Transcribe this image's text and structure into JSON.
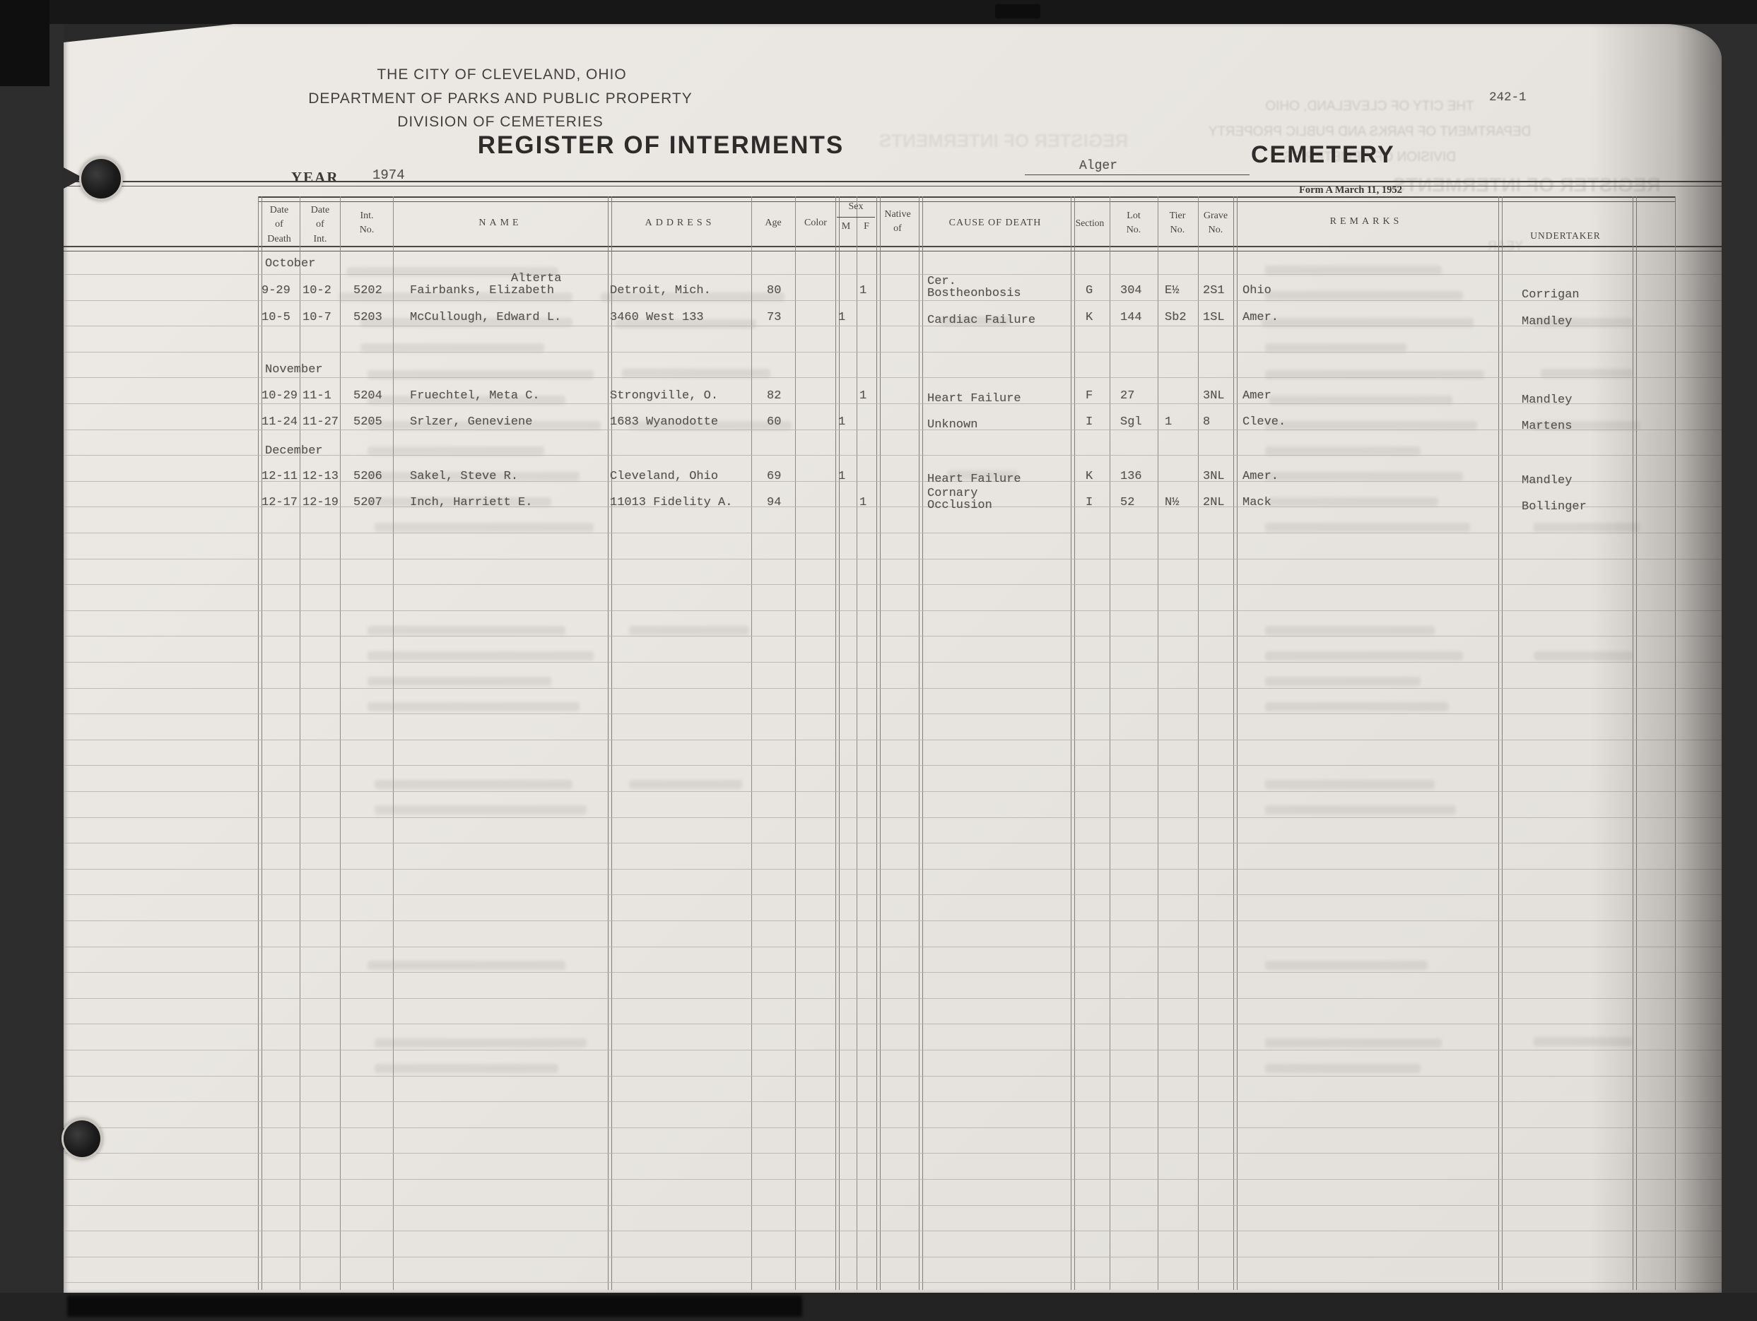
{
  "page_label": "242-1",
  "header": {
    "org_line1": "THE CITY OF CLEVELAND, OHIO",
    "org_line2": "DEPARTMENT OF PARKS AND PUBLIC PROPERTY",
    "org_line3": "DIVISION OF CEMETERIES",
    "title": "REGISTER OF INTERMENTS",
    "year_label": "YEAR",
    "year_value": "1974",
    "cemetery_value": "Alger",
    "cemetery_label": "CEMETERY",
    "form_note": "Form A March 11, 1952"
  },
  "table": {
    "columns": {
      "date_of_death": "Date\nof\nDeath",
      "date_of_int": "Date\nof\nInt.",
      "int_no": "Int.\nNo.",
      "name": "NAME",
      "address": "ADDRESS",
      "age": "Age",
      "color": "Color",
      "sex": "Sex",
      "sex_m": "M",
      "sex_f": "F",
      "native_of": "Native\nof",
      "cause_of_death": "CAUSE OF DEATH",
      "section": "Section",
      "lot_no": "Lot\nNo.",
      "tier_no": "Tier\nNo.",
      "grave_no": "Grave\nNo.",
      "remarks": "REMARKS",
      "undertaker": "UNDERTAKER"
    },
    "rows": [
      {
        "type": "month",
        "label": "October"
      },
      {
        "type": "entry",
        "date_of_death": "9-29",
        "date_of_int": "10-2",
        "int_no": "5202",
        "name": "Fairbanks, Elizabeth",
        "name_above": "Alterta",
        "address": "Detroit, Mich.",
        "age": "80",
        "color": "",
        "sex": "F",
        "native_of": "",
        "cause_lines": [
          "Cer.",
          "Bostheonbosis"
        ],
        "section": "G",
        "lot": "304",
        "tier": "E½",
        "grave": "2S1",
        "remarks": "Ohio",
        "undertaker": "Corrigan"
      },
      {
        "type": "entry",
        "date_of_death": "10-5",
        "date_of_int": "10-7",
        "int_no": "5203",
        "name": "McCullough, Edward L.",
        "name_above": "",
        "address": "3460 West 133",
        "age": "73",
        "color": "",
        "sex": "M",
        "native_of": "",
        "cause_lines": [
          "Cardiac Failure"
        ],
        "section": "K",
        "lot": "144",
        "tier": "Sb2",
        "grave": "1SL",
        "remarks": "Amer.",
        "undertaker": "Mandley"
      },
      {
        "type": "month",
        "label": "November"
      },
      {
        "type": "entry",
        "date_of_death": "10-29",
        "date_of_int": "11-1",
        "int_no": "5204",
        "name": "Fruechtel, Meta C.",
        "name_above": "",
        "address": "Strongville, O.",
        "age": "82",
        "color": "",
        "sex": "F",
        "native_of": "",
        "cause_lines": [
          "Heart Failure"
        ],
        "section": "F",
        "lot": "27",
        "tier": "",
        "grave": "3NL",
        "remarks": "Amer",
        "undertaker": "Mandley"
      },
      {
        "type": "entry",
        "date_of_death": "11-24",
        "date_of_int": "11-27",
        "int_no": "5205",
        "name": "Srlzer, Geneviene",
        "name_above": "",
        "address": "1683 Wyanodotte",
        "age": "60",
        "color": "",
        "sex": "M",
        "native_of": "",
        "cause_lines": [
          "Unknown"
        ],
        "section": "I",
        "lot": "Sgl",
        "tier": "1",
        "grave": "8",
        "remarks": "Cleve.",
        "undertaker": "Martens"
      },
      {
        "type": "month",
        "label": "December"
      },
      {
        "type": "entry",
        "date_of_death": "12-11",
        "date_of_int": "12-13",
        "int_no": "5206",
        "name": "Sakel, Steve R.",
        "name_above": "",
        "address": "Cleveland, Ohio",
        "age": "69",
        "color": "",
        "sex": "M",
        "native_of": "",
        "cause_lines": [
          "Heart Failure"
        ],
        "section": "K",
        "lot": "136",
        "tier": "",
        "grave": "3NL",
        "remarks": "Amer.",
        "undertaker": "Mandley"
      },
      {
        "type": "entry",
        "date_of_death": "12-17",
        "date_of_int": "12-19",
        "int_no": "5207",
        "name": "Inch, Harriett E.",
        "name_above": "",
        "address": "11013 Fidelity A.",
        "age": "94",
        "color": "",
        "sex": "F",
        "native_of": "",
        "cause_lines": [
          "Cornary",
          "Occlusion"
        ],
        "section": "I",
        "lot": "52",
        "tier": "N½",
        "grave": "2NL",
        "remarks": "Mack",
        "undertaker": "Bollinger"
      }
    ]
  }
}
